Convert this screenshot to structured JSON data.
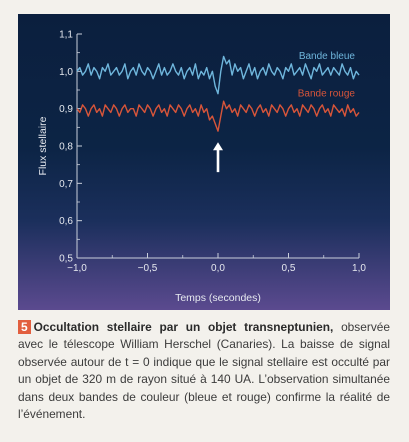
{
  "chart_data": {
    "type": "line",
    "title": "",
    "xlabel": "Temps (secondes)",
    "ylabel": "Flux stellaire",
    "xlim": [
      -1.0,
      1.0
    ],
    "ylim": [
      0.5,
      1.1
    ],
    "xticks": [
      -1.0,
      -0.5,
      0.0,
      0.5,
      1.0
    ],
    "xtick_labels": [
      "−1,0",
      "−0,5",
      "0,0",
      "0,5",
      "1,0"
    ],
    "yticks": [
      0.5,
      0.6,
      0.7,
      0.8,
      0.9,
      1.0,
      1.1
    ],
    "ytick_labels": [
      "0,5",
      "0,6",
      "0,7",
      "0,8",
      "0,9",
      "1,0",
      "1,1"
    ],
    "grid": false,
    "series": [
      {
        "name": "Bande bleue",
        "color": "#6fb6dc",
        "x": [
          -1.0,
          -0.98,
          -0.96,
          -0.94,
          -0.92,
          -0.9,
          -0.88,
          -0.86,
          -0.84,
          -0.82,
          -0.8,
          -0.78,
          -0.76,
          -0.74,
          -0.72,
          -0.7,
          -0.68,
          -0.66,
          -0.64,
          -0.62,
          -0.6,
          -0.58,
          -0.56,
          -0.54,
          -0.52,
          -0.5,
          -0.48,
          -0.46,
          -0.44,
          -0.42,
          -0.4,
          -0.38,
          -0.36,
          -0.34,
          -0.32,
          -0.3,
          -0.28,
          -0.26,
          -0.24,
          -0.22,
          -0.2,
          -0.18,
          -0.16,
          -0.14,
          -0.12,
          -0.1,
          -0.08,
          -0.06,
          -0.04,
          -0.02,
          0.0,
          0.02,
          0.04,
          0.06,
          0.08,
          0.1,
          0.12,
          0.14,
          0.16,
          0.18,
          0.2,
          0.22,
          0.24,
          0.26,
          0.28,
          0.3,
          0.32,
          0.34,
          0.36,
          0.38,
          0.4,
          0.42,
          0.44,
          0.46,
          0.48,
          0.5,
          0.52,
          0.54,
          0.56,
          0.58,
          0.6,
          0.62,
          0.64,
          0.66,
          0.68,
          0.7,
          0.72,
          0.74,
          0.76,
          0.78,
          0.8,
          0.82,
          0.84,
          0.86,
          0.88,
          0.9,
          0.92,
          0.94,
          0.96,
          0.98,
          1.0
        ],
        "values": [
          1.0,
          1.01,
          0.99,
          1.0,
          1.02,
          0.99,
          1.01,
          1.0,
          0.98,
          1.01,
          1.0,
          1.02,
          0.99,
          1.0,
          1.01,
          0.99,
          1.0,
          1.02,
          0.98,
          1.0,
          1.01,
          0.99,
          1.02,
          1.0,
          0.99,
          1.01,
          1.0,
          0.98,
          1.0,
          1.02,
          0.99,
          1.01,
          0.99,
          1.0,
          1.02,
          1.0,
          0.99,
          1.01,
          0.98,
          1.0,
          1.01,
          0.99,
          1.02,
          0.98,
          1.0,
          0.99,
          1.01,
          0.98,
          1.0,
          0.96,
          0.94,
          1.0,
          1.04,
          1.02,
          1.03,
          0.99,
          1.02,
          1.0,
          1.01,
          0.98,
          1.0,
          1.02,
          0.99,
          1.01,
          0.98,
          1.0,
          1.01,
          0.99,
          1.02,
          1.0,
          0.99,
          1.01,
          1.0,
          0.98,
          1.01,
          1.0,
          1.02,
          0.99,
          1.0,
          1.01,
          0.99,
          1.02,
          1.0,
          0.98,
          1.01,
          1.0,
          1.02,
          0.99,
          1.0,
          1.01,
          0.99,
          1.01,
          1.0,
          0.99,
          1.02,
          1.0,
          0.99,
          1.01,
          0.98,
          1.0,
          0.99
        ]
      },
      {
        "name": "Bande rouge",
        "color": "#d8553a",
        "x": [
          -1.0,
          -0.98,
          -0.96,
          -0.94,
          -0.92,
          -0.9,
          -0.88,
          -0.86,
          -0.84,
          -0.82,
          -0.8,
          -0.78,
          -0.76,
          -0.74,
          -0.72,
          -0.7,
          -0.68,
          -0.66,
          -0.64,
          -0.62,
          -0.6,
          -0.58,
          -0.56,
          -0.54,
          -0.52,
          -0.5,
          -0.48,
          -0.46,
          -0.44,
          -0.42,
          -0.4,
          -0.38,
          -0.36,
          -0.34,
          -0.32,
          -0.3,
          -0.28,
          -0.26,
          -0.24,
          -0.22,
          -0.2,
          -0.18,
          -0.16,
          -0.14,
          -0.12,
          -0.1,
          -0.08,
          -0.06,
          -0.04,
          -0.02,
          0.0,
          0.02,
          0.04,
          0.06,
          0.08,
          0.1,
          0.12,
          0.14,
          0.16,
          0.18,
          0.2,
          0.22,
          0.24,
          0.26,
          0.28,
          0.3,
          0.32,
          0.34,
          0.36,
          0.38,
          0.4,
          0.42,
          0.44,
          0.46,
          0.48,
          0.5,
          0.52,
          0.54,
          0.56,
          0.58,
          0.6,
          0.62,
          0.64,
          0.66,
          0.68,
          0.7,
          0.72,
          0.74,
          0.76,
          0.78,
          0.8,
          0.82,
          0.84,
          0.86,
          0.88,
          0.9,
          0.92,
          0.94,
          0.96,
          0.98,
          1.0
        ],
        "values": [
          0.9,
          0.89,
          0.91,
          0.9,
          0.88,
          0.9,
          0.91,
          0.89,
          0.9,
          0.88,
          0.91,
          0.9,
          0.89,
          0.91,
          0.9,
          0.88,
          0.9,
          0.91,
          0.89,
          0.9,
          0.9,
          0.88,
          0.91,
          0.9,
          0.89,
          0.91,
          0.9,
          0.88,
          0.9,
          0.91,
          0.89,
          0.9,
          0.88,
          0.91,
          0.9,
          0.89,
          0.91,
          0.9,
          0.88,
          0.9,
          0.91,
          0.89,
          0.9,
          0.88,
          0.91,
          0.89,
          0.9,
          0.87,
          0.88,
          0.86,
          0.84,
          0.88,
          0.92,
          0.9,
          0.91,
          0.89,
          0.9,
          0.88,
          0.91,
          0.9,
          0.89,
          0.91,
          0.9,
          0.88,
          0.9,
          0.91,
          0.89,
          0.9,
          0.88,
          0.91,
          0.9,
          0.89,
          0.91,
          0.9,
          0.88,
          0.9,
          0.91,
          0.89,
          0.9,
          0.88,
          0.91,
          0.9,
          0.89,
          0.91,
          0.9,
          0.88,
          0.9,
          0.91,
          0.89,
          0.9,
          0.88,
          0.91,
          0.9,
          0.89,
          0.9,
          0.88,
          0.91,
          0.89,
          0.9,
          0.88,
          0.89
        ]
      }
    ],
    "annotations": [
      {
        "type": "arrow",
        "color": "#ffffff",
        "x": 0.0,
        "y_from": 0.73,
        "y_to": 0.81
      }
    ]
  },
  "caption": {
    "number": "5",
    "title": "Occultation stellaire par un objet transneptunien,",
    "body": " observée avec le télescope William Herschel (Canaries). La baisse de signal observée autour de t = 0 indique que le signal stellaire est occulté par un objet de 320 m de rayon situé à 140 UA. L’observation simultanée dans deux bandes de couleur (bleue et rouge) confirme la réalité de l’événement."
  }
}
